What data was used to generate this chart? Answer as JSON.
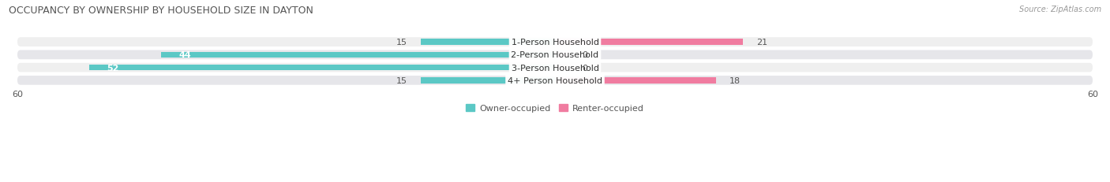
{
  "title": "OCCUPANCY BY OWNERSHIP BY HOUSEHOLD SIZE IN DAYTON",
  "source": "Source: ZipAtlas.com",
  "categories": [
    "1-Person Household",
    "2-Person Household",
    "3-Person Household",
    "4+ Person Household"
  ],
  "owner_values": [
    15,
    44,
    52,
    15
  ],
  "renter_values": [
    21,
    0,
    0,
    18
  ],
  "owner_color": "#5BC8C5",
  "renter_color": "#F07CA0",
  "row_bg_colors": [
    "#EFEFEF",
    "#E6E6EA",
    "#EFEFEF",
    "#E6E6EA"
  ],
  "axis_limit": 60,
  "title_fontsize": 9,
  "source_fontsize": 7,
  "tick_fontsize": 8,
  "bar_label_fontsize": 8,
  "category_fontsize": 8,
  "legend_fontsize": 8
}
